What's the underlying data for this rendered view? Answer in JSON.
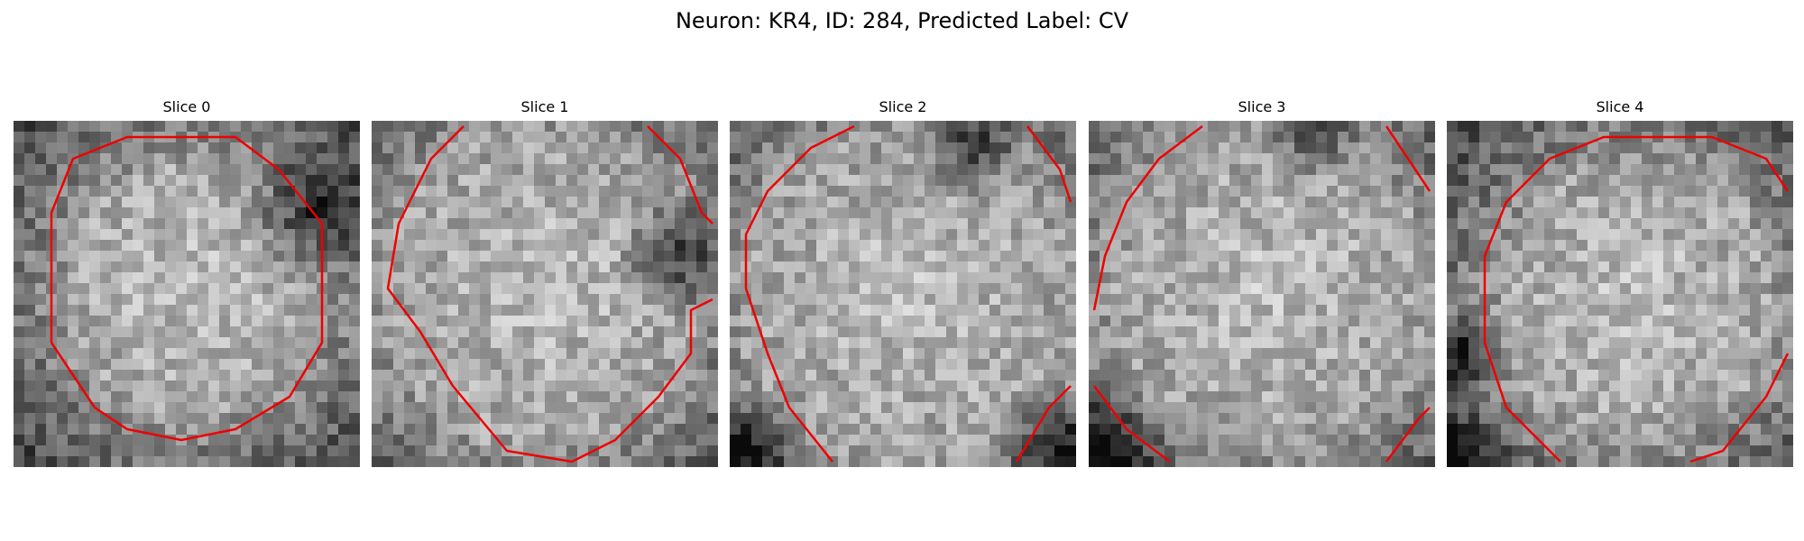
{
  "figure": {
    "title": "Neuron: KR4, ID: 284, Predicted Label: CV",
    "contour_color": "#ee0000"
  },
  "slices": [
    {
      "title": "Slice 0"
    },
    {
      "title": "Slice 1"
    },
    {
      "title": "Slice 2"
    },
    {
      "title": "Slice 3"
    },
    {
      "title": "Slice 4"
    }
  ]
}
